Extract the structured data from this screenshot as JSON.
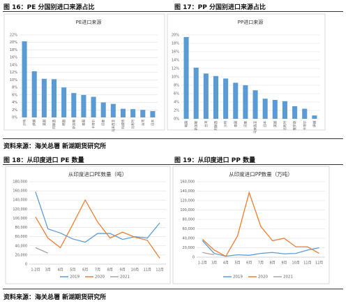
{
  "captions": [
    "图 16：PE 分国别进口来源占比",
    "图 17：PP 分国别进口来源占比",
    "图 18：从印度进口 PE 数量",
    "图 19：从印度进口 PP 数量"
  ],
  "sources": [
    "资料来源：海关总署 新湖期货研究所",
    "资料来源：海关总署 新湖期货研究所"
  ],
  "chart_data": [
    {
      "type": "bar",
      "title": "PE进口来源",
      "color": "#5b9bd5",
      "categories": [
        "沙特",
        "伊朗",
        "美国",
        "阿联酋",
        "韩国",
        "新加坡",
        "泰国",
        "卡塔尔",
        "印度",
        "马来西亚",
        "科威特",
        "比利时",
        "台湾",
        "日本"
      ],
      "values": [
        20.3,
        12.3,
        10.3,
        10.2,
        8,
        6.5,
        6,
        5.5,
        4,
        3.6,
        2.3,
        2.2,
        2,
        1.7
      ],
      "ylim": [
        0,
        22
      ],
      "yticks": [
        {
          "value": 0,
          "label": "0%"
        },
        {
          "value": 2,
          "label": "2%"
        },
        {
          "value": 4,
          "label": "4%"
        },
        {
          "value": 6,
          "label": "6%"
        },
        {
          "value": 8,
          "label": "8%"
        },
        {
          "value": 10,
          "label": "10%"
        },
        {
          "value": 12,
          "label": "12%"
        },
        {
          "value": 14,
          "label": "14%"
        },
        {
          "value": 16,
          "label": "16%"
        },
        {
          "value": 18,
          "label": "18%"
        },
        {
          "value": 20,
          "label": "20%"
        },
        {
          "value": 22,
          "label": "22%"
        }
      ]
    },
    {
      "type": "bar",
      "title": "PP进口来源",
      "color": "#5b9bd5",
      "categories": [
        "韩国",
        "新加坡",
        "台湾",
        "阿联酋",
        "沙特",
        "泰国",
        "印度",
        "马来西亚",
        "日本",
        "美国",
        "比利时",
        "俄罗斯",
        "卡塔尔",
        "伊朗"
      ],
      "values": [
        19.5,
        12.2,
        10.8,
        10.2,
        9.6,
        8.6,
        8,
        6.8,
        4.8,
        4.5,
        4.2,
        3,
        2.4,
        0.8
      ],
      "ylim": [
        0,
        20
      ],
      "yticks": [
        {
          "value": 0,
          "label": "0%"
        },
        {
          "value": 2,
          "label": "2%"
        },
        {
          "value": 4,
          "label": "4%"
        },
        {
          "value": 6,
          "label": "6%"
        },
        {
          "value": 8,
          "label": "8%"
        },
        {
          "value": 10,
          "label": "10%"
        },
        {
          "value": 12,
          "label": "12%"
        },
        {
          "value": 14,
          "label": "14%"
        },
        {
          "value": 16,
          "label": "16%"
        },
        {
          "value": 18,
          "label": "18%"
        },
        {
          "value": 20,
          "label": "20%"
        }
      ]
    },
    {
      "type": "line",
      "title": "从印度进口PE数量（吨）",
      "categories": [
        "1-2月",
        "3月",
        "4月",
        "5月",
        "6月",
        "7月",
        "8月",
        "9月",
        "10月",
        "11月",
        "12月"
      ],
      "series": [
        {
          "name": "2019",
          "color": "#5b9bd5",
          "values": [
            158000,
            77000,
            68000,
            55000,
            48000,
            67000,
            67000,
            54000,
            60000,
            57000,
            90000
          ]
        },
        {
          "name": "2020",
          "color": "#ed7d31",
          "values": [
            103000,
            57000,
            36000,
            87000,
            140000,
            92000,
            57000,
            70000,
            59000,
            52000,
            13000
          ]
        },
        {
          "name": "2021",
          "color": "#a5a5a5",
          "values": [
            36000,
            24000,
            null,
            null,
            null,
            null,
            null,
            null,
            null,
            null,
            null
          ]
        }
      ],
      "ylim": [
        0,
        180000
      ],
      "yticks": [
        0,
        {
          "value": 20000,
          "label": "20,000"
        },
        {
          "value": 40000,
          "label": "40,000"
        },
        {
          "value": 60000,
          "label": "60,000"
        },
        {
          "value": 80000,
          "label": "80,000"
        },
        {
          "value": 100000,
          "label": "100,000"
        },
        {
          "value": 120000,
          "label": "120,000"
        },
        {
          "value": 140000,
          "label": "140,000"
        },
        {
          "value": 160000,
          "label": "160,000"
        },
        {
          "value": 180000,
          "label": "180,000"
        }
      ]
    },
    {
      "type": "line",
      "title": "从印度进口PP数量（万吨）",
      "categories": [
        "1-2月",
        "3月",
        "4月",
        "5月",
        "6月",
        "7月",
        "8月",
        "9月",
        "10月",
        "11月",
        "12月"
      ],
      "series": [
        {
          "name": "2019",
          "color": "#5b9bd5",
          "values": [
            35000,
            8000,
            2000,
            5000,
            4000,
            8000,
            10000,
            7000,
            8000,
            15000,
            20000
          ]
        },
        {
          "name": "2020",
          "color": "#ed7d31",
          "values": [
            38000,
            15000,
            2000,
            45000,
            137000,
            65000,
            35000,
            40000,
            22000,
            22000,
            8000
          ]
        },
        {
          "name": "2021",
          "color": "#a5a5a5",
          "values": [
            10000,
            5000,
            null,
            null,
            null,
            null,
            null,
            null,
            null,
            null,
            null
          ]
        }
      ],
      "ylim": [
        0,
        160000
      ],
      "yticks": [
        0,
        {
          "value": 20000,
          "label": "20,000"
        },
        {
          "value": 40000,
          "label": "40,000"
        },
        {
          "value": 60000,
          "label": "60,000"
        },
        {
          "value": 80000,
          "label": "80,000"
        },
        {
          "value": 100000,
          "label": "100,000"
        },
        {
          "value": 120000,
          "label": "120,000"
        },
        {
          "value": 140000,
          "label": "140,000"
        },
        {
          "value": 160000,
          "label": "160,000"
        }
      ]
    }
  ]
}
